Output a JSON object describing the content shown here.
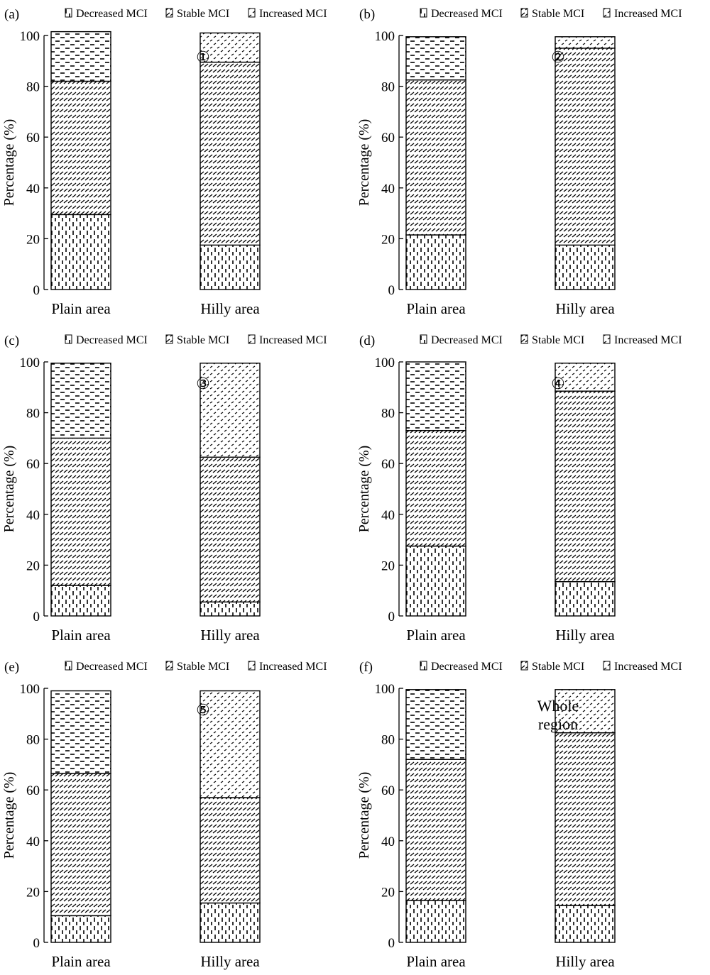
{
  "chart_data": [
    {
      "panel": "(a)",
      "annotation": [
        "①"
      ],
      "type": "bar",
      "stacked": true,
      "categories": [
        "Plain area",
        "Hilly area"
      ],
      "series": [
        {
          "name": "Decreased MCI",
          "values": [
            29.5,
            17.5
          ]
        },
        {
          "name": "Stable MCI",
          "values": [
            52.5,
            72.0
          ]
        },
        {
          "name": "Increased MCI",
          "values": [
            19.5,
            11.5
          ]
        }
      ],
      "ylabel": "Percentage (%)",
      "ylim": [
        0,
        100
      ],
      "yticks": [
        "0",
        "20",
        "40",
        "60",
        "80",
        "100"
      ],
      "legend": "top"
    },
    {
      "panel": "(b)",
      "annotation": [
        "②"
      ],
      "type": "bar",
      "stacked": true,
      "categories": [
        "Plain area",
        "Hilly area"
      ],
      "series": [
        {
          "name": "Decreased MCI",
          "values": [
            21.5,
            17.5
          ]
        },
        {
          "name": "Stable MCI",
          "values": [
            61.0,
            77.5
          ]
        },
        {
          "name": "Increased MCI",
          "values": [
            17.0,
            4.5
          ]
        }
      ],
      "ylabel": "Percentage (%)",
      "ylim": [
        0,
        100
      ],
      "yticks": [
        "0",
        "20",
        "40",
        "60",
        "80",
        "100"
      ],
      "legend": "top"
    },
    {
      "panel": "(c)",
      "annotation": [
        "③"
      ],
      "type": "bar",
      "stacked": true,
      "categories": [
        "Plain area",
        "Hilly area"
      ],
      "series": [
        {
          "name": "Decreased MCI",
          "values": [
            12.0,
            5.5
          ]
        },
        {
          "name": "Stable MCI",
          "values": [
            58.0,
            57.0
          ]
        },
        {
          "name": "Increased MCI",
          "values": [
            29.5,
            37.0
          ]
        }
      ],
      "ylabel": "Percentage (%)",
      "ylim": [
        0,
        100
      ],
      "yticks": [
        "0",
        "20",
        "40",
        "60",
        "80",
        "100"
      ],
      "legend": "top"
    },
    {
      "panel": "(d)",
      "annotation": [
        "④"
      ],
      "type": "bar",
      "stacked": true,
      "categories": [
        "Plain area",
        "Hilly area"
      ],
      "series": [
        {
          "name": "Decreased MCI",
          "values": [
            27.5,
            13.5
          ]
        },
        {
          "name": "Stable MCI",
          "values": [
            45.5,
            75.0
          ]
        },
        {
          "name": "Increased MCI",
          "values": [
            27.0,
            11.0
          ]
        }
      ],
      "ylabel": "Percentage (%)",
      "ylim": [
        0,
        100
      ],
      "yticks": [
        "0",
        "20",
        "40",
        "60",
        "80",
        "100"
      ],
      "legend": "top"
    },
    {
      "panel": "(e)",
      "annotation": [
        "⑤"
      ],
      "type": "bar",
      "stacked": true,
      "categories": [
        "Plain area",
        "Hilly area"
      ],
      "series": [
        {
          "name": "Decreased MCI",
          "values": [
            10.5,
            15.5
          ]
        },
        {
          "name": "Stable MCI",
          "values": [
            56.0,
            41.5
          ]
        },
        {
          "name": "Increased MCI",
          "values": [
            32.5,
            42.0
          ]
        }
      ],
      "ylabel": "Percentage (%)",
      "ylim": [
        0,
        100
      ],
      "yticks": [
        "0",
        "20",
        "40",
        "60",
        "80",
        "100"
      ],
      "legend": "top"
    },
    {
      "panel": "(f)",
      "annotation": [
        "Whole",
        "region"
      ],
      "type": "bar",
      "stacked": true,
      "categories": [
        "Plain area",
        "Hilly area"
      ],
      "series": [
        {
          "name": "Decreased MCI",
          "values": [
            16.5,
            14.5
          ]
        },
        {
          "name": "Stable MCI",
          "values": [
            55.5,
            68.0
          ]
        },
        {
          "name": "Increased MCI",
          "values": [
            27.5,
            17.0
          ]
        }
      ],
      "ylabel": "Percentage (%)",
      "ylim": [
        0,
        100
      ],
      "yticks": [
        "0",
        "20",
        "40",
        "60",
        "80",
        "100"
      ],
      "legend": "top"
    }
  ]
}
